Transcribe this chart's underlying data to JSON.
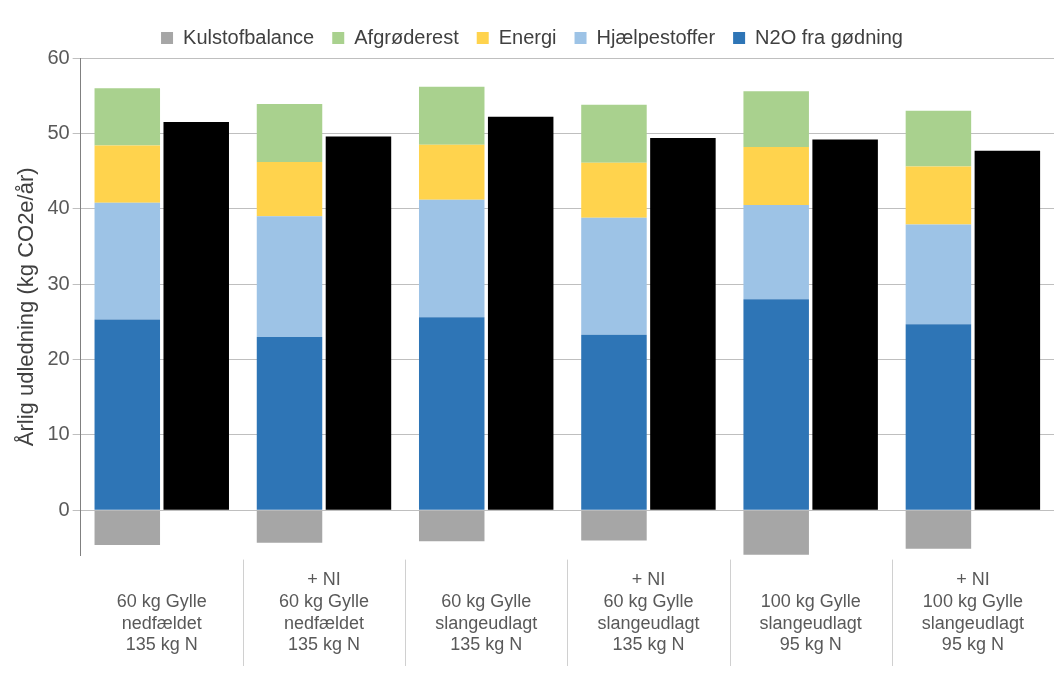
{
  "chart_data": {
    "type": "bar",
    "ylabel": "Årlig udledning (kg CO2e/år)",
    "categories": [
      "60 kg Gylle\nnedfældet\n135 kg N",
      "+ NI\n60 kg Gylle\nnedfældet\n135 kg N",
      "60 kg Gylle\nslangeudlagt\n135 kg N",
      "+ NI\n60 kg Gylle\nslangeudlagt\n135 kg N",
      "100 kg Gylle\nslangeudlagt\n95 kg N",
      "+ NI\n100 kg Gylle\nslangeudlagt\n95 kg N"
    ],
    "series": [
      {
        "name": "Kulstofbalance",
        "color": "#a6a6a6",
        "base": [
          0,
          0,
          0,
          0,
          0,
          0
        ],
        "values": [
          -4.6,
          -4.3,
          -4.1,
          -4.0,
          -5.9,
          -5.1
        ]
      },
      {
        "name": "N2O fra gødning",
        "color": "#2e75b6",
        "base": [
          0,
          0,
          0,
          0,
          0,
          0
        ],
        "values": [
          25.3,
          23.0,
          25.6,
          23.3,
          28.0,
          24.7
        ]
      },
      {
        "name": "Hjælpestoffer",
        "color": "#9dc3e6",
        "base": [
          25.3,
          23.0,
          25.6,
          23.3,
          28.0,
          24.7
        ],
        "values": [
          15.5,
          16.0,
          15.6,
          15.5,
          12.5,
          13.2
        ]
      },
      {
        "name": "Energi",
        "color": "#ffd34d",
        "base": [
          40.8,
          39.0,
          41.2,
          38.8,
          40.5,
          37.9
        ],
        "values": [
          7.6,
          7.2,
          7.3,
          7.3,
          7.7,
          7.7
        ]
      },
      {
        "name": "Afgrøderest",
        "color": "#a9d18e",
        "base": [
          48.4,
          46.2,
          48.5,
          46.1,
          48.2,
          45.6
        ],
        "values": [
          7.6,
          7.7,
          7.7,
          7.7,
          7.4,
          7.4
        ]
      },
      {
        "type": "bar",
        "color": "#000000",
        "values": [
          51.5,
          49.6,
          52.2,
          49.4,
          49.2,
          47.7
        ]
      }
    ],
    "ylim": [
      -6,
      60
    ],
    "yticks": [
      0,
      10,
      20,
      30,
      40,
      50,
      60
    ],
    "grid": "y",
    "legend": "top"
  }
}
